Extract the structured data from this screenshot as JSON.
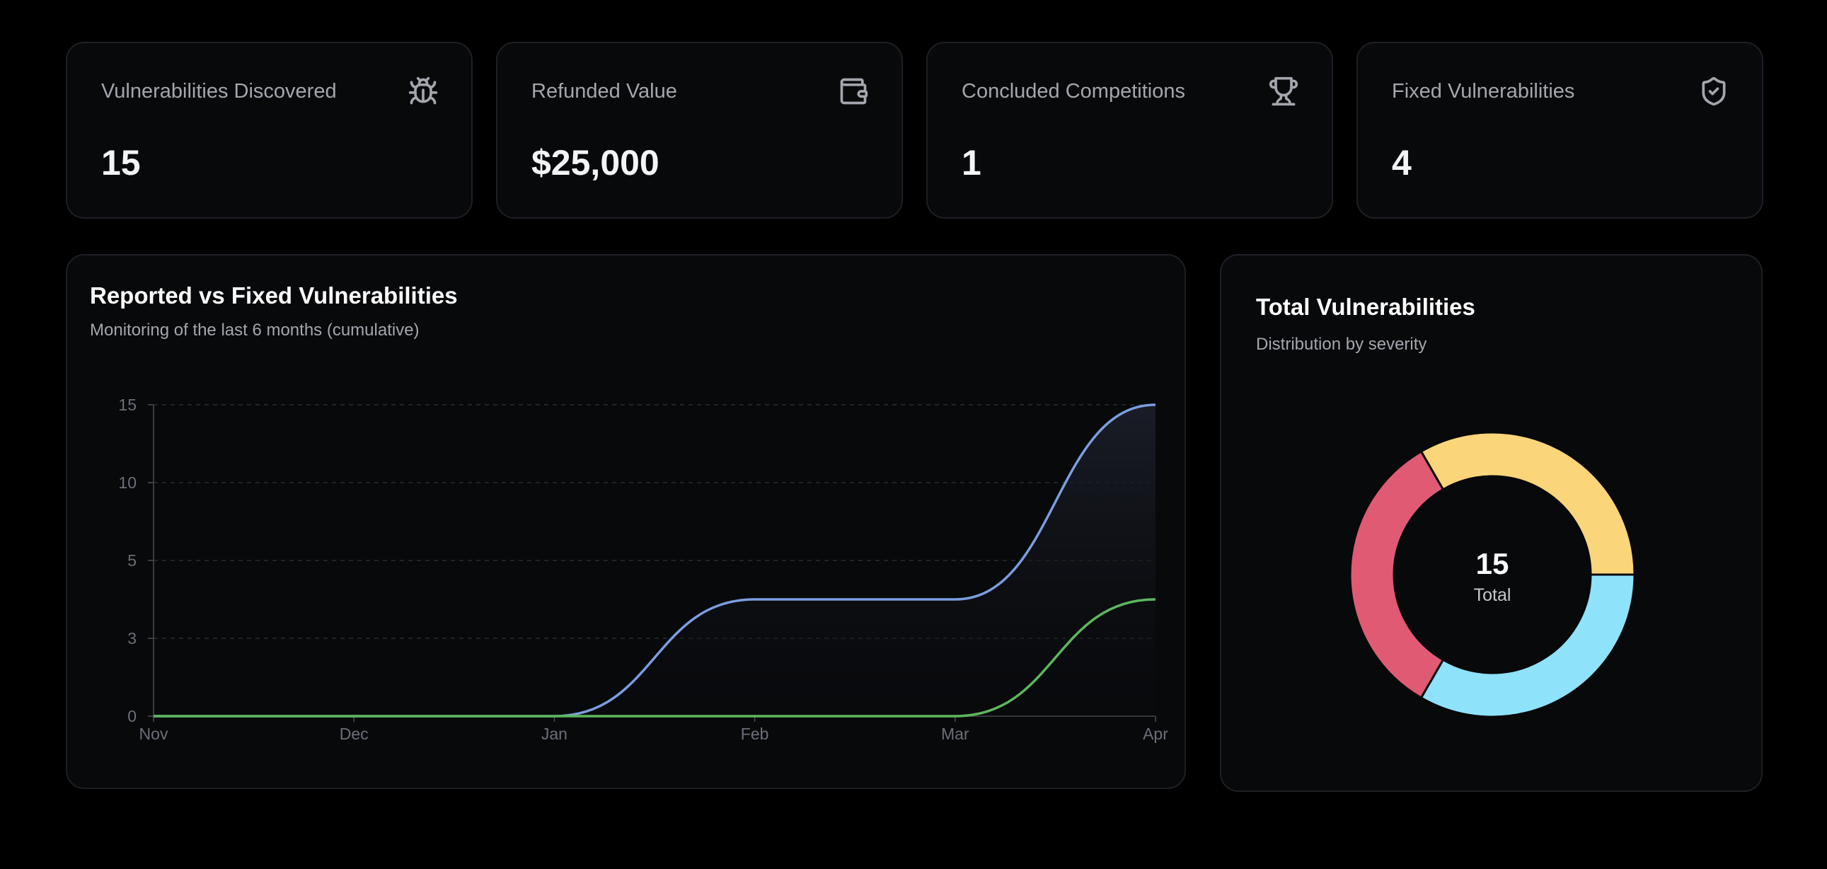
{
  "stats": [
    {
      "title": "Vulnerabilities Discovered",
      "value": "15",
      "icon": "bug-icon"
    },
    {
      "title": "Refunded Value",
      "value": "$25,000",
      "icon": "wallet-icon"
    },
    {
      "title": "Concluded Competitions",
      "value": "1",
      "icon": "trophy-icon"
    },
    {
      "title": "Fixed Vulnerabilities",
      "value": "4",
      "icon": "shield-check-icon"
    }
  ],
  "line_panel": {
    "title": "Reported vs Fixed Vulnerabilities",
    "subtitle": "Monitoring of the last 6 months (cumulative)"
  },
  "donut_panel": {
    "title": "Total Vulnerabilities",
    "subtitle": "Distribution by severity",
    "center_value": "15",
    "center_label": "Total"
  },
  "chart_data": [
    {
      "type": "area",
      "categories": [
        "Nov",
        "Dec",
        "Jan",
        "Feb",
        "Mar",
        "Apr"
      ],
      "y_ticks": [
        0,
        3,
        5,
        10,
        15
      ],
      "grid": true,
      "series": [
        {
          "values": [
            0,
            0,
            0,
            4,
            4,
            15
          ],
          "color": "#7b9ee0"
        },
        {
          "values": [
            0,
            0,
            0,
            0,
            0,
            4
          ],
          "color": "#5cb85c"
        }
      ]
    },
    {
      "type": "pie",
      "donut": true,
      "center_value": "15",
      "slices": [
        {
          "value": 5,
          "color": "#fbd57a"
        },
        {
          "value": 5,
          "color": "#8ee3fb"
        },
        {
          "value": 5,
          "color": "#e05a73"
        }
      ]
    }
  ]
}
